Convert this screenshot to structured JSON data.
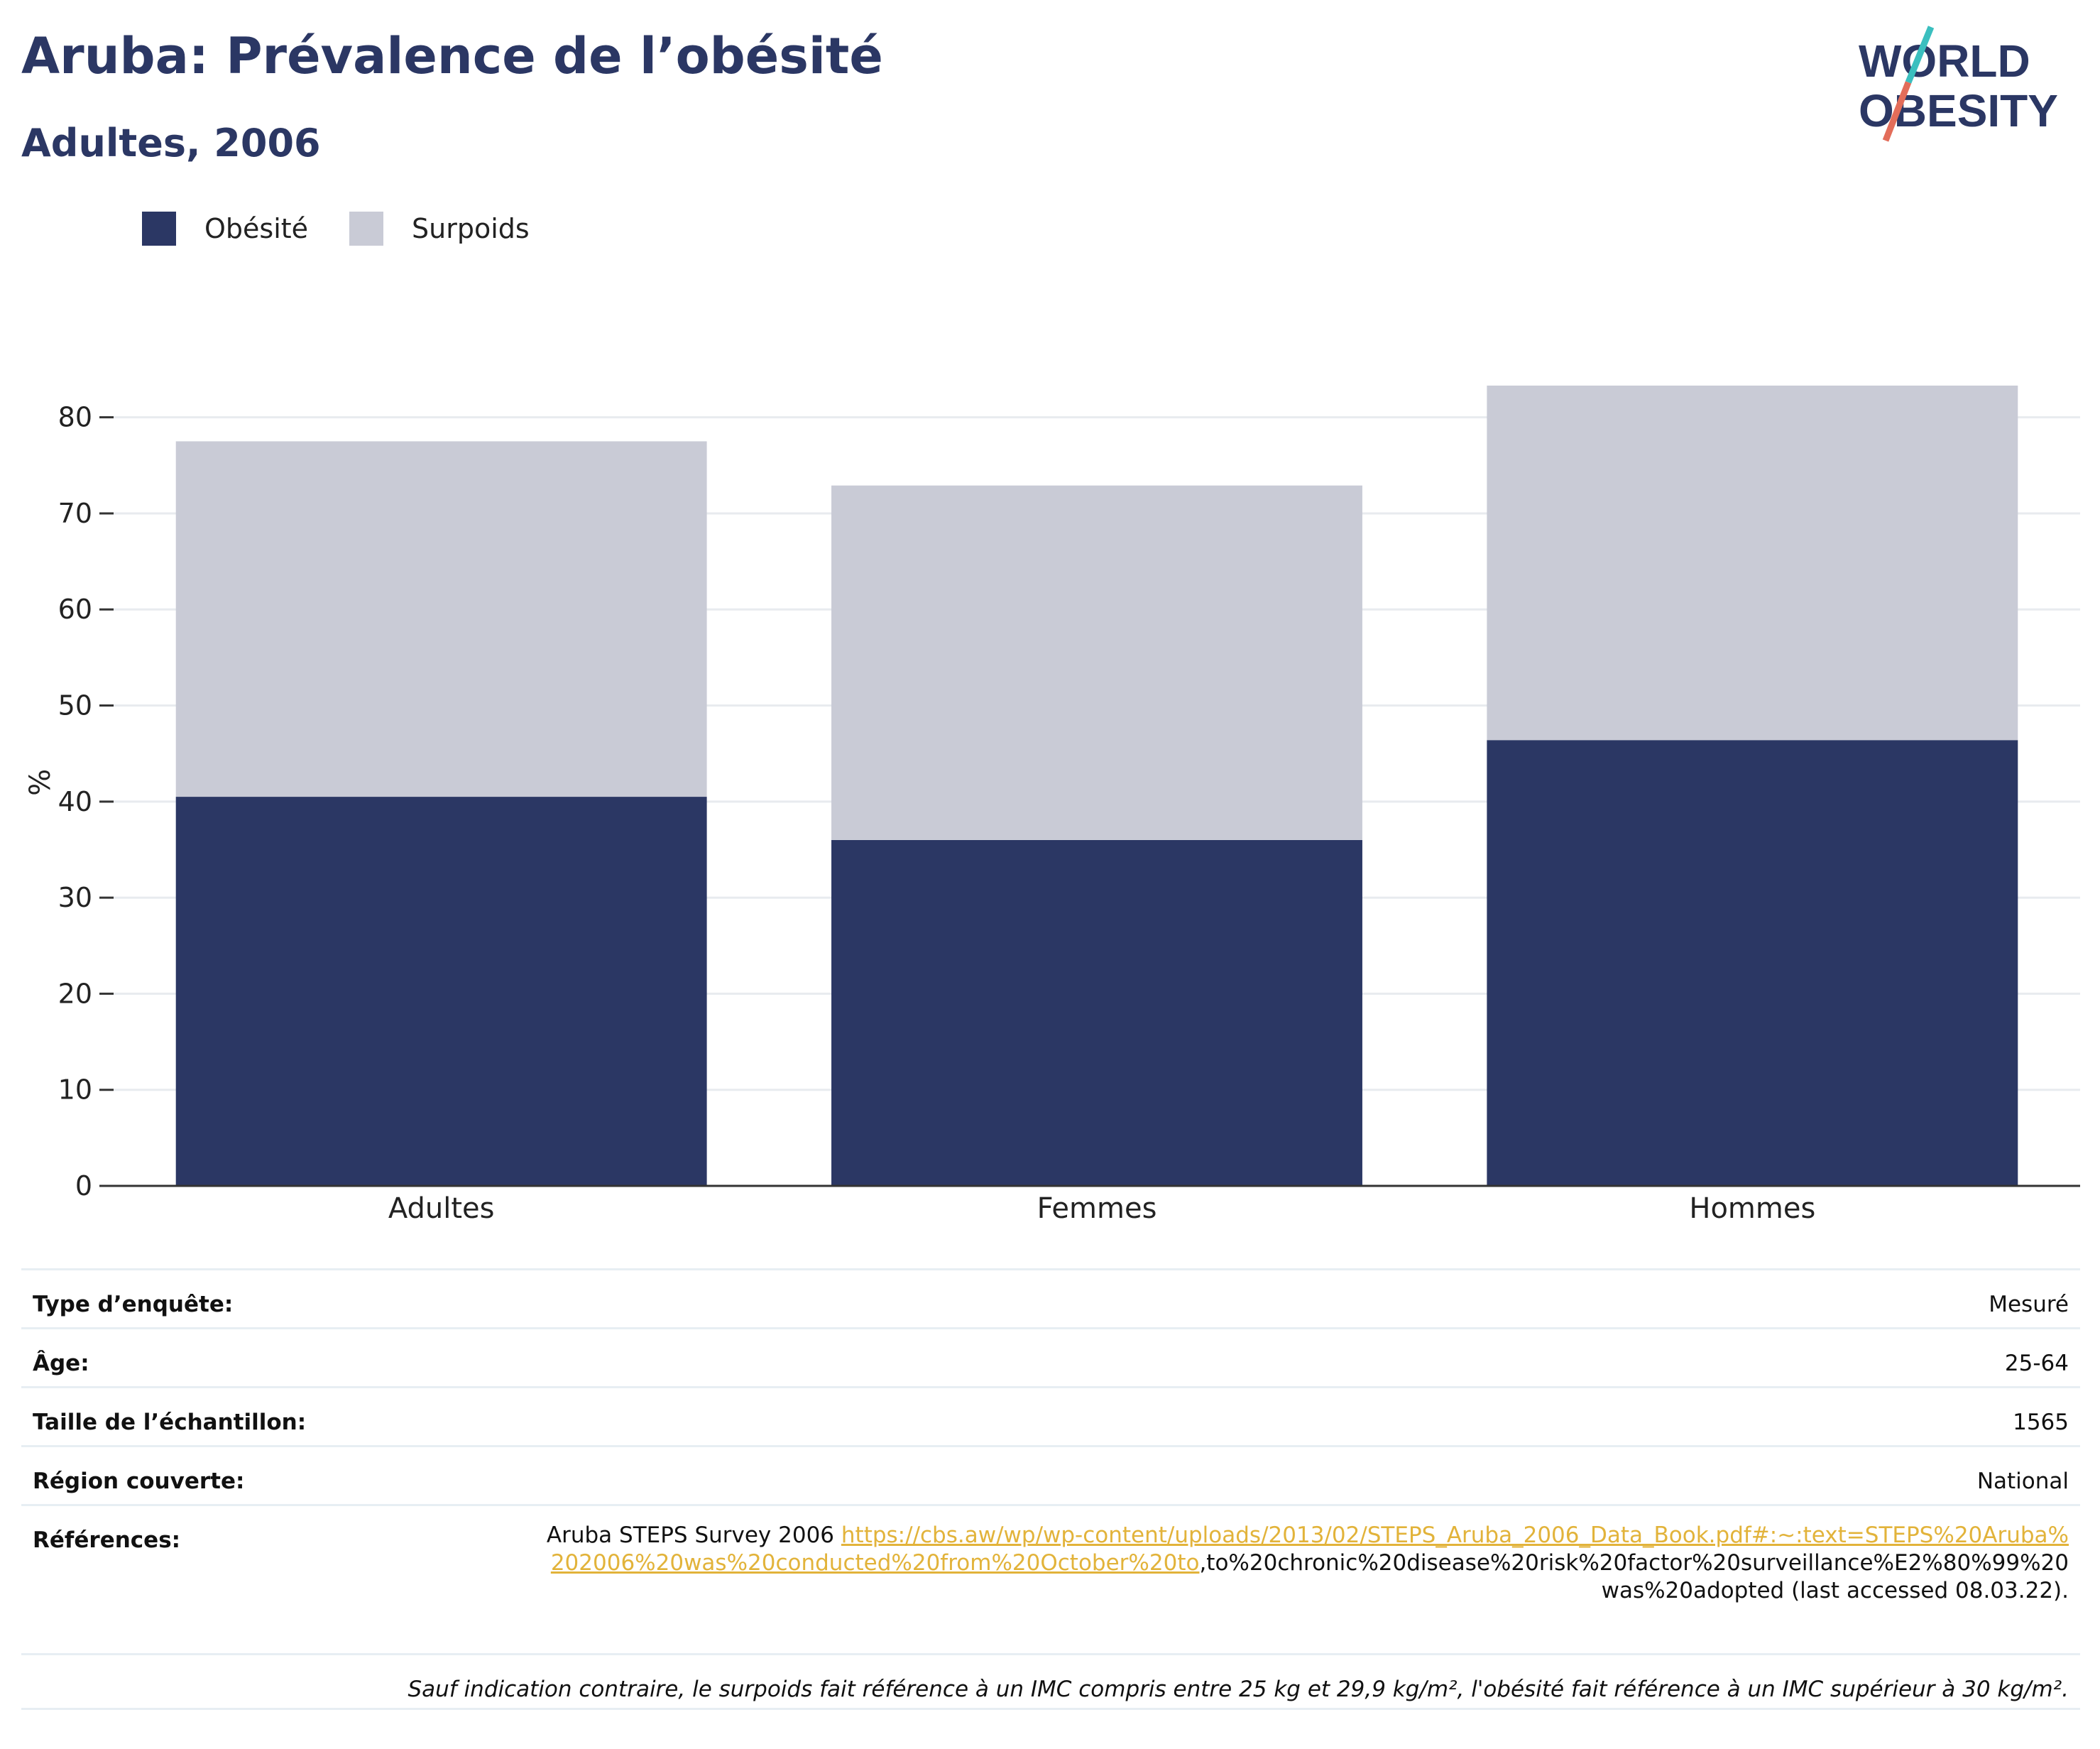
{
  "header": {
    "title": "Aruba: Prévalence de l’obésité",
    "subtitle": "Adultes, 2006"
  },
  "logo": {
    "line1": "WORLD",
    "line2": "OBESITY"
  },
  "legend": [
    {
      "label": "Obésité",
      "color": "#2b3764"
    },
    {
      "label": "Surpoids",
      "color": "#c9cbd6"
    }
  ],
  "chart_data": {
    "type": "bar",
    "stacked": true,
    "categories": [
      "Adultes",
      "Femmes",
      "Hommes"
    ],
    "series": [
      {
        "name": "Obésité",
        "color": "#2b3764",
        "values": [
          40.5,
          36.0,
          46.4
        ]
      },
      {
        "name": "Surpoids",
        "color": "#c9cbd6",
        "values": [
          37.0,
          36.9,
          36.9
        ]
      }
    ],
    "ylabel": "%",
    "ylim": [
      0,
      85
    ],
    "yticks": [
      0,
      10,
      20,
      30,
      40,
      50,
      60,
      70,
      80
    ],
    "grid": true,
    "legend_position": "top-left"
  },
  "info": {
    "survey_type_label": "Type d’enquête:",
    "survey_type_value": "Mesuré",
    "age_label": "Âge:",
    "age_value": "25-64",
    "sample_label": "Taille de l’échantillon:",
    "sample_value": "1565",
    "region_label": "Région couverte:",
    "region_value": "National",
    "references_label": "Références:",
    "references_prefix": "Aruba STEPS Survey 2006 ",
    "references_link": "https://cbs.aw/wp/wp-content/uploads/2013/02/STEPS_Aruba_2006_Data_Book.pdf#:~:text=STEPS%20Aruba%202006%20was%20conducted%20from%20October%20to",
    "references_suffix": ",to%20chronic%20disease%20risk%20factor%20surveillance%E2%80%99%20was%20adopted (last accessed 08.03.22).",
    "note": "Sauf indication contraire, le surpoids fait référence à un IMC compris entre 25 kg et 29,9 kg/m², l'obésité fait référence à un IMC supérieur à 30 kg/m²."
  }
}
